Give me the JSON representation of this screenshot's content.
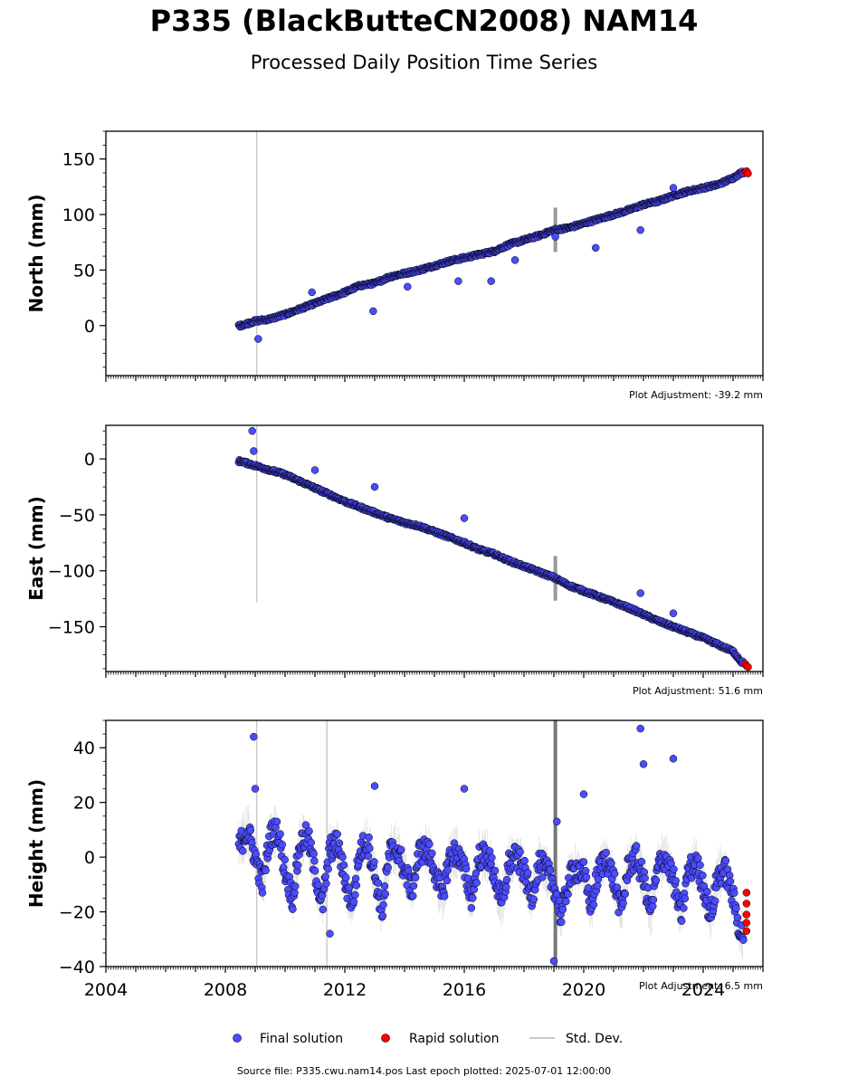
{
  "title": "P335 (BlackButteCN2008) NAM14",
  "subtitle": "Processed Daily Position Time Series",
  "source": "Source file: P335.cwu.nam14.pos  Last epoch plotted: 2025-07-01 12:00:00",
  "colors": {
    "final": "#4b4bff",
    "rapid": "#ff0000",
    "marker_edge": "#000000",
    "stddev": "#c8c8c8",
    "stddev_dark": "#555555"
  },
  "legend": {
    "final": "Final solution",
    "rapid": "Rapid solution",
    "stddev": "Std. Dev."
  },
  "chart_data": [
    {
      "type": "scatter",
      "ylabel": "North (mm)",
      "adjustment": "Plot Adjustment: -39.2 mm",
      "xlim": [
        2004,
        2026
      ],
      "ylim": [
        -45,
        175
      ],
      "yticks": [
        0,
        50,
        100,
        150
      ],
      "ytick_labels": [
        "0",
        "50",
        "100",
        "150"
      ],
      "series": [
        {
          "name": "Final solution",
          "x": [
            2008.5,
            2009.0,
            2009.5,
            2010.0,
            2010.5,
            2011.0,
            2011.5,
            2012.0,
            2012.5,
            2013.0,
            2013.5,
            2014.0,
            2014.5,
            2015.0,
            2015.5,
            2016.0,
            2016.5,
            2017.0,
            2017.5,
            2018.0,
            2018.5,
            2019.0,
            2019.5,
            2020.0,
            2020.5,
            2021.0,
            2021.5,
            2022.0,
            2022.5,
            2023.0,
            2023.5,
            2024.0,
            2024.5,
            2025.0,
            2025.3
          ],
          "y": [
            0,
            4,
            6,
            10,
            15,
            20,
            25,
            30,
            36,
            38,
            44,
            47,
            50,
            54,
            58,
            61,
            64,
            67,
            73,
            77,
            81,
            86,
            88,
            92,
            96,
            100,
            104,
            109,
            112,
            117,
            121,
            124,
            127,
            133,
            138
          ]
        },
        {
          "name": "Rapid solution",
          "x": [
            2025.4,
            2025.45,
            2025.5
          ],
          "y": [
            138,
            139,
            137
          ]
        }
      ],
      "outliers": {
        "x": [
          2009.1,
          2010.9,
          2012.95,
          2014.1,
          2015.8,
          2016.9,
          2017.7,
          2019.05,
          2020.4,
          2021.9,
          2023.0
        ],
        "y": [
          -12,
          30,
          13,
          35,
          40,
          40,
          59,
          80,
          70,
          86,
          124
        ]
      }
    },
    {
      "type": "scatter",
      "ylabel": "East (mm)",
      "adjustment": "Plot Adjustment: 51.6 mm",
      "xlim": [
        2004,
        2026
      ],
      "ylim": [
        -190,
        30
      ],
      "yticks": [
        0,
        -50,
        -100,
        -150
      ],
      "ytick_labels": [
        "0",
        "−50",
        "−100",
        "−150"
      ],
      "series": [
        {
          "name": "Final solution",
          "x": [
            2008.5,
            2009.0,
            2009.5,
            2010.0,
            2010.5,
            2011.0,
            2011.5,
            2012.0,
            2012.5,
            2013.0,
            2013.5,
            2014.0,
            2014.5,
            2015.0,
            2015.5,
            2016.0,
            2016.5,
            2017.0,
            2017.5,
            2018.0,
            2018.5,
            2019.0,
            2019.5,
            2020.0,
            2020.5,
            2021.0,
            2021.5,
            2022.0,
            2022.5,
            2023.0,
            2023.5,
            2024.0,
            2024.5,
            2025.0,
            2025.3
          ],
          "y": [
            -2,
            -6,
            -10,
            -14,
            -20,
            -26,
            -32,
            -38,
            -43,
            -48,
            -53,
            -57,
            -60,
            -65,
            -70,
            -75,
            -81,
            -85,
            -91,
            -96,
            -101,
            -106,
            -113,
            -118,
            -123,
            -128,
            -133,
            -139,
            -145,
            -150,
            -155,
            -160,
            -166,
            -172,
            -182
          ]
        },
        {
          "name": "Rapid solution",
          "x": [
            2025.4,
            2025.45,
            2025.5
          ],
          "y": [
            -183,
            -185,
            -186
          ]
        }
      ],
      "outliers": {
        "x": [
          2008.9,
          2008.95,
          2011.0,
          2013.0,
          2016.0,
          2021.9,
          2023.0
        ],
        "y": [
          25,
          7,
          -10,
          -25,
          -53,
          -120,
          -138
        ]
      }
    },
    {
      "type": "scatter",
      "ylabel": "Height (mm)",
      "adjustment": "Plot Adjustment: 6.5 mm",
      "xlim": [
        2004,
        2026
      ],
      "ylim": [
        -40,
        50
      ],
      "yticks": [
        40,
        20,
        0,
        -20,
        -40
      ],
      "ytick_labels": [
        "40",
        "20",
        "0",
        "−20",
        "−40"
      ],
      "xticks": [
        2004,
        2008,
        2012,
        2016,
        2020,
        2024
      ],
      "xtick_labels": [
        "2004",
        "2008",
        "2012",
        "2016",
        "2020",
        "2024"
      ],
      "series": [
        {
          "name": "Final solution",
          "x": [
            2008.5,
            2008.75,
            2009.0,
            2009.25,
            2009.5,
            2009.75,
            2010.0,
            2010.25,
            2010.5,
            2010.75,
            2011.0,
            2011.25,
            2011.5,
            2011.75,
            2012.0,
            2012.25,
            2012.5,
            2012.75,
            2013.0,
            2013.25,
            2013.5,
            2013.75,
            2014.0,
            2014.25,
            2014.5,
            2014.75,
            2015.0,
            2015.25,
            2015.5,
            2015.75,
            2016.0,
            2016.25,
            2016.5,
            2016.75,
            2017.0,
            2017.25,
            2017.5,
            2017.75,
            2018.0,
            2018.25,
            2018.5,
            2018.75,
            2019.0,
            2019.25,
            2019.5,
            2019.75,
            2020.0,
            2020.25,
            2020.5,
            2020.75,
            2021.0,
            2021.25,
            2021.5,
            2021.75,
            2022.0,
            2022.25,
            2022.5,
            2022.75,
            2023.0,
            2023.25,
            2023.5,
            2023.75,
            2024.0,
            2024.25,
            2024.5,
            2024.75,
            2025.0,
            2025.25
          ],
          "y": [
            5,
            10,
            0,
            -10,
            8,
            10,
            -5,
            -15,
            5,
            8,
            -5,
            -18,
            3,
            5,
            -8,
            -18,
            2,
            6,
            -6,
            -20,
            2,
            3,
            -5,
            -12,
            2,
            3,
            -4,
            -15,
            0,
            2,
            -5,
            -15,
            0,
            1,
            -6,
            -18,
            -2,
            0,
            -5,
            -15,
            -2,
            -5,
            -10,
            -22,
            -8,
            -4,
            -6,
            -18,
            -5,
            0,
            -8,
            -20,
            -3,
            0,
            -8,
            -20,
            -3,
            0,
            -8,
            -22,
            -5,
            -2,
            -10,
            -22,
            -6,
            -5,
            -15,
            -28
          ]
        },
        {
          "name": "Rapid solution",
          "x": [
            2025.45,
            2025.45,
            2025.45,
            2025.45,
            2025.45
          ],
          "y": [
            -13,
            -17,
            -21,
            -24,
            -27
          ]
        }
      ],
      "outliers": {
        "x": [
          2008.95,
          2009.0,
          2011.5,
          2013.0,
          2016.0,
          2019.0,
          2019.1,
          2020.0,
          2021.9,
          2022.0,
          2023.0
        ],
        "y": [
          44,
          25,
          -28,
          26,
          25,
          -38,
          13,
          23,
          47,
          34,
          36
        ]
      }
    }
  ]
}
